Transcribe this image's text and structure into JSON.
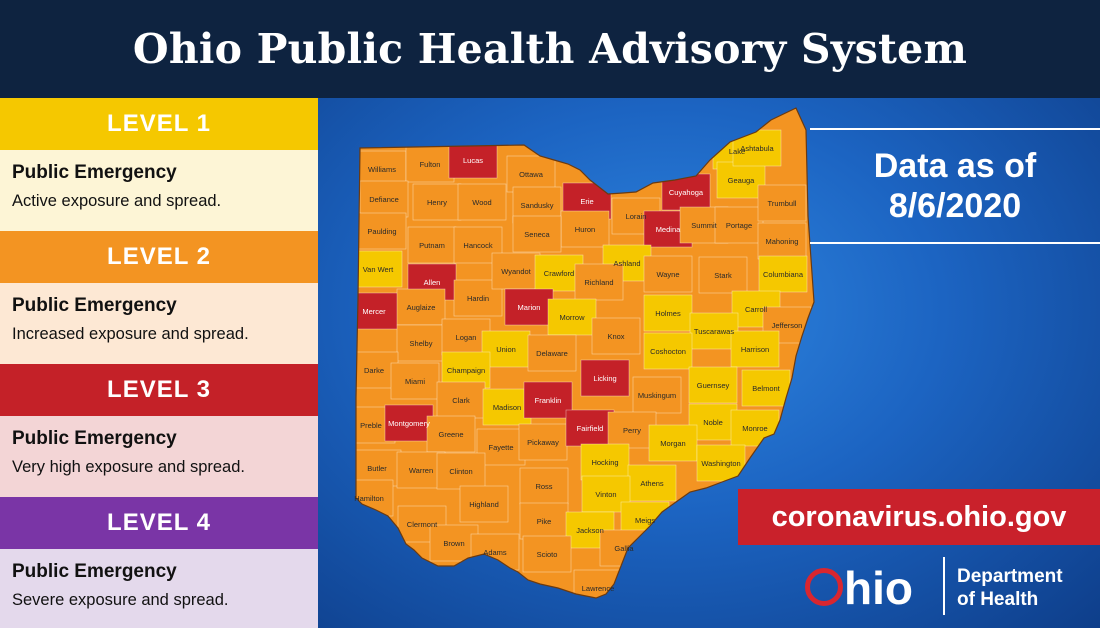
{
  "title": "Ohio Public Health Advisory System",
  "colors": {
    "level1": "#f5c800",
    "level2": "#f39422",
    "level3": "#c42128",
    "level4": "#7a35a6",
    "level1_bg": "#fdf5d6",
    "level2_bg": "#fde8d4",
    "level3_bg": "#f3d5d6",
    "level4_bg": "#e4d9ec",
    "header_bg": "#0e2340",
    "ocean": "#1c64c2"
  },
  "levels": [
    {
      "label": "LEVEL 1",
      "heading": "Public Emergency",
      "description": "Active exposure and spread."
    },
    {
      "label": "LEVEL 2",
      "heading": "Public Emergency",
      "description": "Increased exposure and spread."
    },
    {
      "label": "LEVEL 3",
      "heading": "Public Emergency",
      "description": "Very high exposure and spread."
    },
    {
      "label": "LEVEL 4",
      "heading": "Public Emergency",
      "description": "Severe exposure and spread."
    }
  ],
  "date_line1": "Data as of",
  "date_line2": "8/6/2020",
  "website": "coronavirus.ohio.gov",
  "logo": {
    "ohio": "hio",
    "dept_line1": "Department",
    "dept_line2": "of Health"
  },
  "counties": [
    {
      "name": "Williams",
      "level": 2
    },
    {
      "name": "Fulton",
      "level": 2
    },
    {
      "name": "Lucas",
      "level": 3
    },
    {
      "name": "Ottawa",
      "level": 2
    },
    {
      "name": "Erie",
      "level": 3
    },
    {
      "name": "Lorain",
      "level": 2
    },
    {
      "name": "Cuyahoga",
      "level": 3
    },
    {
      "name": "Lake",
      "level": 1
    },
    {
      "name": "Geauga",
      "level": 1
    },
    {
      "name": "Ashtabula",
      "level": 1
    },
    {
      "name": "Defiance",
      "level": 2
    },
    {
      "name": "Henry",
      "level": 2
    },
    {
      "name": "Wood",
      "level": 2
    },
    {
      "name": "Sandusky",
      "level": 2
    },
    {
      "name": "Huron",
      "level": 2
    },
    {
      "name": "Medina",
      "level": 3
    },
    {
      "name": "Summit",
      "level": 2
    },
    {
      "name": "Portage",
      "level": 2
    },
    {
      "name": "Trumbull",
      "level": 2
    },
    {
      "name": "Paulding",
      "level": 2
    },
    {
      "name": "Putnam",
      "level": 2
    },
    {
      "name": "Hancock",
      "level": 2
    },
    {
      "name": "Seneca",
      "level": 2
    },
    {
      "name": "Ashland",
      "level": 1
    },
    {
      "name": "Wayne",
      "level": 2
    },
    {
      "name": "Stark",
      "level": 2
    },
    {
      "name": "Mahoning",
      "level": 2
    },
    {
      "name": "Van Wert",
      "level": 1
    },
    {
      "name": "Allen",
      "level": 3
    },
    {
      "name": "Hardin",
      "level": 2
    },
    {
      "name": "Wyandot",
      "level": 2
    },
    {
      "name": "Crawford",
      "level": 1
    },
    {
      "name": "Richland",
      "level": 2
    },
    {
      "name": "Columbiana",
      "level": 1
    },
    {
      "name": "Mercer",
      "level": 3
    },
    {
      "name": "Auglaize",
      "level": 2
    },
    {
      "name": "Marion",
      "level": 3
    },
    {
      "name": "Morrow",
      "level": 1
    },
    {
      "name": "Holmes",
      "level": 1
    },
    {
      "name": "Carroll",
      "level": 1
    },
    {
      "name": "Tuscarawas",
      "level": 1
    },
    {
      "name": "Jefferson",
      "level": 2
    },
    {
      "name": "Shelby",
      "level": 2
    },
    {
      "name": "Logan",
      "level": 2
    },
    {
      "name": "Union",
      "level": 1
    },
    {
      "name": "Delaware",
      "level": 2
    },
    {
      "name": "Knox",
      "level": 2
    },
    {
      "name": "Coshocton",
      "level": 1
    },
    {
      "name": "Harrison",
      "level": 1
    },
    {
      "name": "Darke",
      "level": 2
    },
    {
      "name": "Miami",
      "level": 2
    },
    {
      "name": "Champaign",
      "level": 1
    },
    {
      "name": "Licking",
      "level": 3
    },
    {
      "name": "Muskingum",
      "level": 2
    },
    {
      "name": "Guernsey",
      "level": 1
    },
    {
      "name": "Belmont",
      "level": 1
    },
    {
      "name": "Clark",
      "level": 2
    },
    {
      "name": "Madison",
      "level": 1
    },
    {
      "name": "Franklin",
      "level": 3
    },
    {
      "name": "Noble",
      "level": 1
    },
    {
      "name": "Preble",
      "level": 2
    },
    {
      "name": "Montgomery",
      "level": 3
    },
    {
      "name": "Greene",
      "level": 2
    },
    {
      "name": "Fayette",
      "level": 2
    },
    {
      "name": "Pickaway",
      "level": 2
    },
    {
      "name": "Fairfield",
      "level": 3
    },
    {
      "name": "Perry",
      "level": 2
    },
    {
      "name": "Morgan",
      "level": 1
    },
    {
      "name": "Monroe",
      "level": 1
    },
    {
      "name": "Washington",
      "level": 1
    },
    {
      "name": "Butler",
      "level": 2
    },
    {
      "name": "Warren",
      "level": 2
    },
    {
      "name": "Clinton",
      "level": 2
    },
    {
      "name": "Hocking",
      "level": 1
    },
    {
      "name": "Athens",
      "level": 1
    },
    {
      "name": "Ross",
      "level": 2
    },
    {
      "name": "Vinton",
      "level": 1
    },
    {
      "name": "Hamilton",
      "level": 2
    },
    {
      "name": "Highland",
      "level": 2
    },
    {
      "name": "Clermont",
      "level": 2
    },
    {
      "name": "Pike",
      "level": 2
    },
    {
      "name": "Meigs",
      "level": 1
    },
    {
      "name": "Jackson",
      "level": 1
    },
    {
      "name": "Brown",
      "level": 2
    },
    {
      "name": "Adams",
      "level": 2
    },
    {
      "name": "Scioto",
      "level": 2
    },
    {
      "name": "Gallia",
      "level": 2
    },
    {
      "name": "Lawrence",
      "level": 2
    }
  ]
}
